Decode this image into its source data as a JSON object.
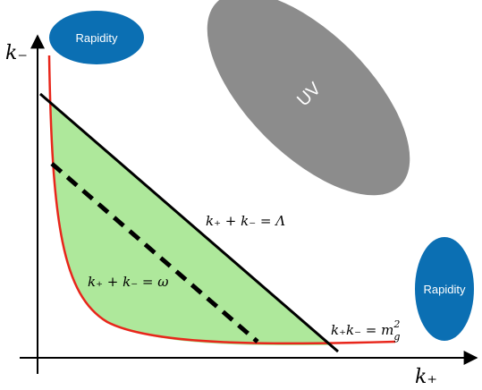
{
  "axes": {
    "y_label": "k₋",
    "x_label": "k₊"
  },
  "regions": {
    "rapidity_top": "Rapidity",
    "rapidity_right": "Rapidity",
    "uv": "UV"
  },
  "equations": {
    "cutoff": "k₊ + k₋ = Λ",
    "omega": "k₊ + k₋ = ω",
    "mass": {
      "text": "k₊k₋ = m",
      "sub": "g",
      "sup": "2"
    }
  }
}
